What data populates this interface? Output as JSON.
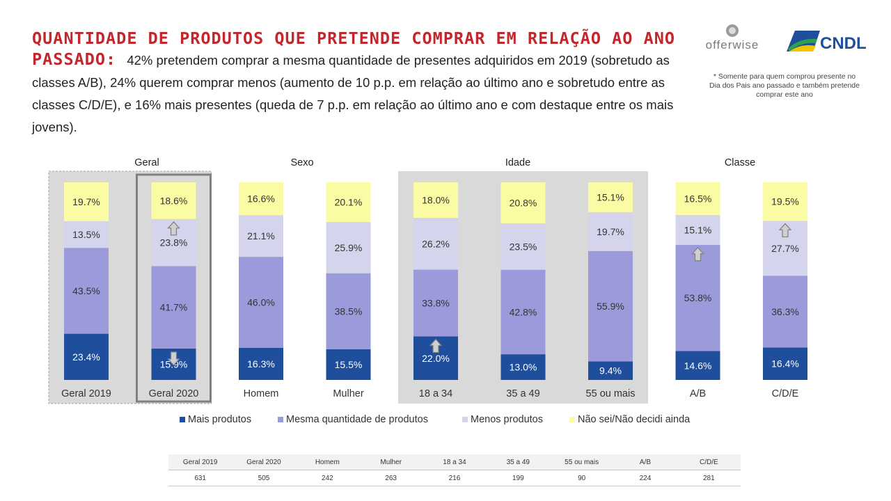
{
  "header": {
    "title_bold": "QUANTIDADE DE PRODUTOS QUE PRETENDE COMPRAR EM RELAÇÃO AO ANO PASSADO:",
    "title_text": "42% pretendem comprar a mesma quantidade de presentes adquiridos em 2019 (sobretudo as classes A/B), 24% querem comprar menos (aumento de 10 p.p. em relação ao último ano e sobretudo entre as classes C/D/E), e 16% mais presentes (queda de 7 p.p. em relação ao último ano e com destaque entre os mais jovens).",
    "footnote": "* Somente para quem comprou presente no Dia dos Pais ano passado e também pretende comprar este ano"
  },
  "logos": {
    "offerwise": "offerwise",
    "cndl": "CNDL"
  },
  "colors": {
    "mais": "#1f4e9c",
    "mesma": "#9b9bdc",
    "menos": "#d4d4ec",
    "naosei": "#fbfba4",
    "panel": "#d9d9d9",
    "highlight_border": "#7f7f7f",
    "arrow": "#cfcfcf"
  },
  "chart_data": {
    "type": "bar",
    "stacked": true,
    "groups": [
      {
        "label": "Geral",
        "categories": [
          "Geral 2019",
          "Geral 2020"
        ]
      },
      {
        "label": "Sexo",
        "categories": [
          "Homem",
          "Mulher"
        ]
      },
      {
        "label": "Idade",
        "categories": [
          "18 a 34",
          "35 a 49",
          "55 ou mais"
        ]
      },
      {
        "label": "Classe",
        "categories": [
          "A/B",
          "C/D/E"
        ]
      }
    ],
    "categories": [
      "Geral 2019",
      "Geral 2020",
      "Homem",
      "Mulher",
      "18 a 34",
      "35 a 49",
      "55 ou mais",
      "A/B",
      "C/D/E"
    ],
    "series": [
      {
        "name": "Mais produtos",
        "values": [
          23.4,
          15.9,
          16.3,
          15.5,
          22.0,
          13.0,
          9.4,
          14.6,
          16.4
        ],
        "labels": [
          "23.4%",
          "15.9%",
          "16.3%",
          "15.5%",
          "22.0%",
          "13.0%",
          "9.4%",
          "14.6%",
          "16.4%"
        ]
      },
      {
        "name": "Mesma quantidade de produtos",
        "values": [
          43.5,
          41.7,
          46.0,
          38.5,
          33.8,
          42.8,
          55.9,
          53.8,
          36.3
        ],
        "labels": [
          "43.5%",
          "41.7%",
          "46.0%",
          "38.5%",
          "33.8%",
          "42.8%",
          "55.9%",
          "53.8%",
          "36.3%"
        ]
      },
      {
        "name": "Menos produtos",
        "values": [
          13.5,
          23.8,
          21.1,
          25.9,
          26.2,
          23.5,
          19.7,
          15.1,
          27.7
        ],
        "labels": [
          "13.5%",
          "23.8%",
          "21.1%",
          "25.9%",
          "26.2%",
          "23.5%",
          "19.7%",
          "15.1%",
          "27.7%"
        ]
      },
      {
        "name": "Não sei/Não decidi ainda",
        "values": [
          19.7,
          18.6,
          16.6,
          20.1,
          18.0,
          20.8,
          15.1,
          16.5,
          19.5
        ],
        "labels": [
          "19.7%",
          "18.6%",
          "16.6%",
          "20.1%",
          "18.0%",
          "20.8%",
          "15.1%",
          "16.5%",
          "19.5%"
        ]
      }
    ],
    "arrows": [
      {
        "category": "Geral 2020",
        "series": "Menos produtos",
        "direction": "up"
      },
      {
        "category": "Geral 2020",
        "series": "Mais produtos",
        "direction": "down"
      },
      {
        "category": "18 a 34",
        "series": "Mais produtos",
        "direction": "up"
      },
      {
        "category": "A/B",
        "series": "Mesma quantidade de produtos",
        "direction": "up"
      },
      {
        "category": "C/D/E",
        "series": "Menos produtos",
        "direction": "up"
      }
    ],
    "shaded_groups": [
      "Geral",
      "Idade"
    ],
    "highlighted_category": "Geral 2020",
    "legend_position": "bottom",
    "ylim": [
      0,
      100
    ],
    "grid": false
  },
  "sample_table": {
    "headers": [
      "Geral 2019",
      "Geral 2020",
      "Homem",
      "Mulher",
      "18 a 34",
      "35 a 49",
      "55 ou mais",
      "A/B",
      "C/D/E"
    ],
    "values": [
      "631",
      "505",
      "242",
      "263",
      "216",
      "199",
      "90",
      "224",
      "281"
    ]
  }
}
